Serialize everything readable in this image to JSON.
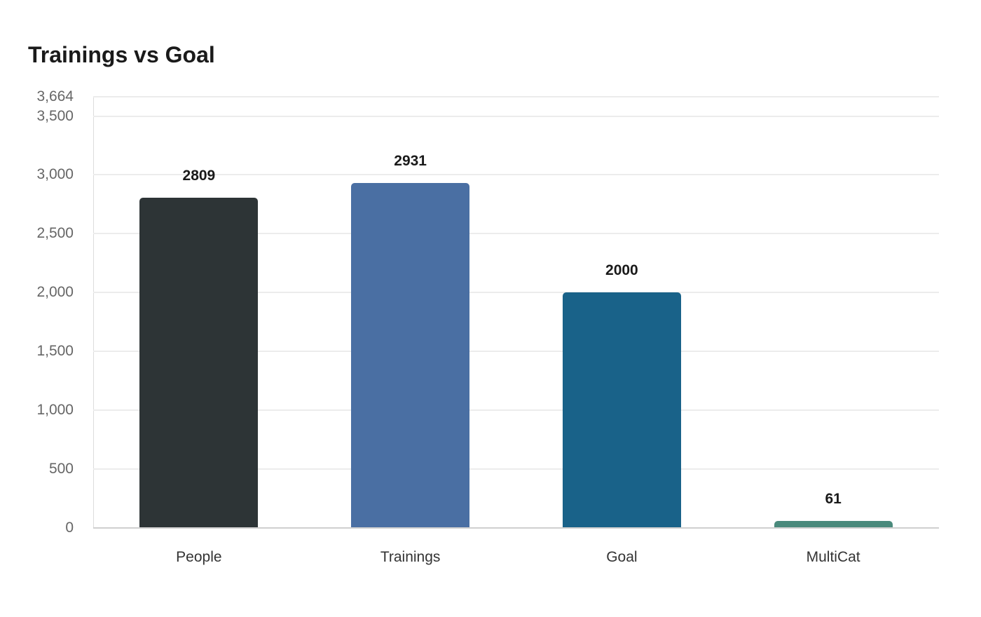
{
  "title": "Trainings vs Goal",
  "chart_data": {
    "type": "bar",
    "title": "Trainings vs Goal",
    "xlabel": "",
    "ylabel": "",
    "categories": [
      "People",
      "Trainings",
      "Goal",
      "MultiCat"
    ],
    "values": [
      2809,
      2931,
      2000,
      61
    ],
    "colors": [
      "#2d3436",
      "#4a6fa3",
      "#196289",
      "#4a8a7c"
    ],
    "ylim": [
      0,
      3664
    ],
    "yticks": [
      0,
      500,
      1000,
      1500,
      2000,
      2500,
      3000,
      3500,
      3664
    ],
    "ytick_labels": [
      "0",
      "500",
      "1,000",
      "1,500",
      "2,000",
      "2,500",
      "3,000",
      "3,500",
      "3,664"
    ],
    "grid": true,
    "legend": null,
    "data_labels": true
  }
}
